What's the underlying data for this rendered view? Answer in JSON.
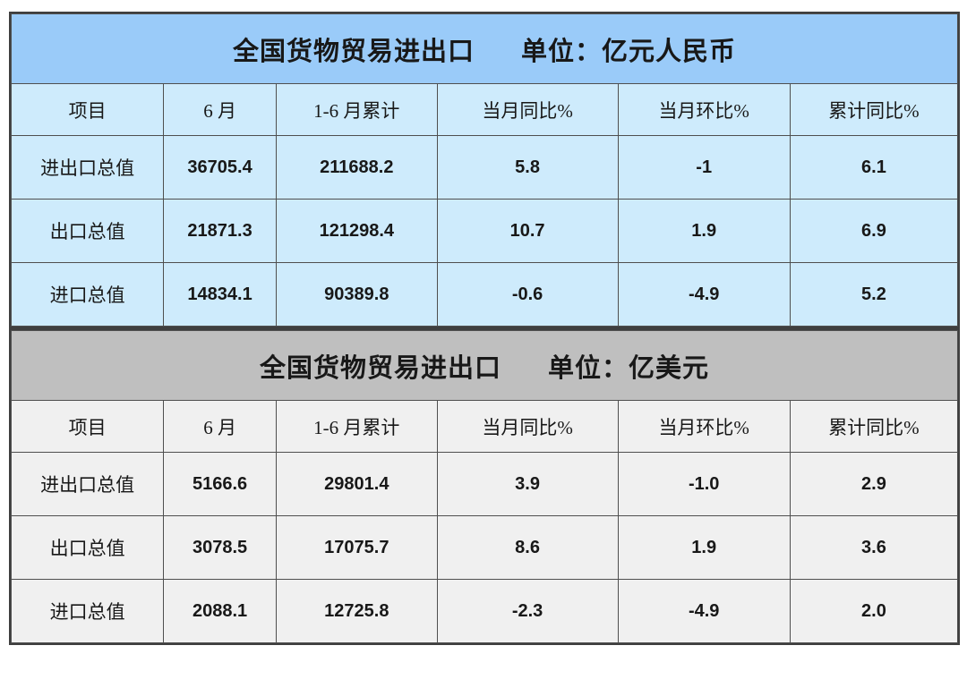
{
  "colors": {
    "rmb_title_bg": "#9ACBF9",
    "rmb_cell_bg": "#CEEBFC",
    "usd_title_bg": "#BFBFBF",
    "usd_cell_bg": "#F0F0F0",
    "border_dark": "#3F3F3F",
    "border_inner": "#4F4F4F",
    "text": "#181818",
    "page_bg": "#FFFFFF"
  },
  "tables": [
    {
      "id": "rmb",
      "title_main": "全国货物贸易进出口",
      "title_unit": "单位：亿元人民币",
      "headers": [
        "项目",
        "6 月",
        "1-6 月累计",
        "当月同比%",
        "当月环比%",
        "累计同比%"
      ],
      "rows": [
        {
          "label": "进出口总值",
          "cells": [
            "36705.4",
            "211688.2",
            "5.8",
            "-1",
            "6.1"
          ]
        },
        {
          "label": "出口总值",
          "cells": [
            "21871.3",
            "121298.4",
            "10.7",
            "1.9",
            "6.9"
          ]
        },
        {
          "label": "进口总值",
          "cells": [
            "14834.1",
            "90389.8",
            "-0.6",
            "-4.9",
            "5.2"
          ]
        }
      ]
    },
    {
      "id": "usd",
      "title_main": "全国货物贸易进出口",
      "title_unit": "单位：亿美元",
      "headers": [
        "项目",
        "6 月",
        "1-6 月累计",
        "当月同比%",
        "当月环比%",
        "累计同比%"
      ],
      "rows": [
        {
          "label": "进出口总值",
          "cells": [
            "5166.6",
            "29801.4",
            "3.9",
            "-1.0",
            "2.9"
          ]
        },
        {
          "label": "出口总值",
          "cells": [
            "3078.5",
            "17075.7",
            "8.6",
            "1.9",
            "3.6"
          ]
        },
        {
          "label": "进口总值",
          "cells": [
            "2088.1",
            "12725.8",
            "-2.3",
            "-4.9",
            "2.0"
          ]
        }
      ]
    }
  ],
  "chart_data": [
    {
      "type": "table",
      "title": "全国货物贸易进出口",
      "unit": "亿元人民币",
      "columns": [
        "项目",
        "6 月",
        "1-6 月累计",
        "当月同比%",
        "当月环比%",
        "累计同比%"
      ],
      "rows": [
        [
          "进出口总值",
          36705.4,
          211688.2,
          5.8,
          -1,
          6.1
        ],
        [
          "出口总值",
          21871.3,
          121298.4,
          10.7,
          1.9,
          6.9
        ],
        [
          "进口总值",
          14834.1,
          90389.8,
          -0.6,
          -4.9,
          5.2
        ]
      ]
    },
    {
      "type": "table",
      "title": "全国货物贸易进出口",
      "unit": "亿美元",
      "columns": [
        "项目",
        "6 月",
        "1-6 月累计",
        "当月同比%",
        "当月环比%",
        "累计同比%"
      ],
      "rows": [
        [
          "进出口总值",
          5166.6,
          29801.4,
          3.9,
          -1.0,
          2.9
        ],
        [
          "出口总值",
          3078.5,
          17075.7,
          8.6,
          1.9,
          3.6
        ],
        [
          "进口总值",
          2088.1,
          12725.8,
          -2.3,
          -4.9,
          2.0
        ]
      ]
    }
  ],
  "layout": {
    "col_widths_pct": [
      16.1,
      11.9,
      17.0,
      19.1,
      18.2,
      17.7
    ]
  }
}
